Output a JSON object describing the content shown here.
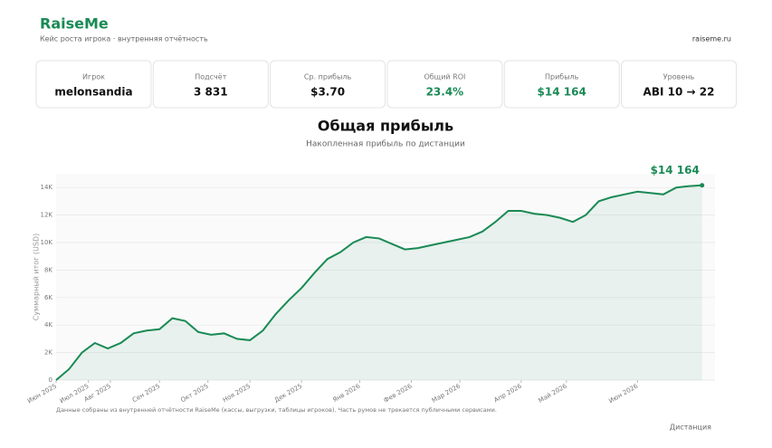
{
  "header": {
    "brand": "RaiseMe",
    "subtitle": "Кейс роста игрока · внутренняя отчётность",
    "site": "raiseme.ru"
  },
  "stats": [
    {
      "label": "Игрок",
      "value": "melonsandia",
      "color": "#111111"
    },
    {
      "label": "Подсчёт",
      "value": "3 831",
      "color": "#111111"
    },
    {
      "label": "Ср. прибыль",
      "value": "$3.70",
      "color": "#111111"
    },
    {
      "label": "Общий ROI",
      "value": "23.4%",
      "color": "#1a8a55"
    },
    {
      "label": "Прибыль",
      "value": "$14 164",
      "color": "#1a8a55"
    },
    {
      "label": "Уровень",
      "value": "ABI 10 → 22",
      "color": "#111111"
    }
  ],
  "chart_data": {
    "type": "line",
    "title": "Общая прибыль",
    "subtitle": "Накопленная прибыль по дистанции",
    "y_label": "Суммарный итог (USD)",
    "x_label": "Дистанция",
    "end_label": "$14 164",
    "footnote": "Данные собраны из внутренней отчётности RaiseMe (кассы, выгрузки, таблицы игроков). Часть румов не трекается публичными сервисами.",
    "color": "#1a8a55",
    "grid": true,
    "x": [
      0,
      2,
      4,
      6,
      8,
      10,
      12,
      14,
      16,
      18,
      20,
      22,
      24,
      26,
      28,
      30,
      32,
      34,
      36,
      38,
      40,
      42,
      44,
      46,
      48,
      50,
      52,
      54,
      56,
      58,
      60,
      62,
      64,
      66,
      68,
      70,
      72,
      74,
      76,
      78,
      80,
      82,
      84,
      86,
      88,
      90,
      92,
      94,
      96,
      98,
      100
    ],
    "series": [
      {
        "name": "Прибыль",
        "color": "#1a8a55",
        "values": [
          0,
          800,
          2000,
          2700,
          2300,
          2700,
          3400,
          3600,
          3700,
          4500,
          4300,
          3500,
          3300,
          3400,
          3000,
          2900,
          3600,
          4800,
          5800,
          6700,
          7800,
          8800,
          9300,
          10000,
          10400,
          10300,
          9900,
          9500,
          9600,
          9800,
          10000,
          10200,
          10400,
          10800,
          11500,
          12300,
          12300,
          12100,
          12000,
          11800,
          11500,
          12000,
          13000,
          13300,
          13500,
          13700,
          13600,
          13500,
          14000,
          14100,
          14164
        ]
      }
    ],
    "xlim": [
      0,
      102
    ],
    "ylim": [
      0,
      15000
    ],
    "xticks": [
      {
        "value": 0,
        "label": "Июн 2025"
      },
      {
        "value": 5,
        "label": "Июл 2025"
      },
      {
        "value": 8.4,
        "label": "Авг 2025"
      },
      {
        "value": 16,
        "label": "Сен 2025"
      },
      {
        "value": 23.5,
        "label": "Окт 2025"
      },
      {
        "value": 30,
        "label": "Ноя 2025"
      },
      {
        "value": 38,
        "label": "Дек 2025"
      },
      {
        "value": 47,
        "label": "Янв 2026"
      },
      {
        "value": 55,
        "label": "Фев 2026"
      },
      {
        "value": 62.5,
        "label": "Мар 2026"
      },
      {
        "value": 72,
        "label": "Апр 2026"
      },
      {
        "value": 79,
        "label": "Май 2026"
      },
      {
        "value": 90,
        "label": "Июн 2026"
      }
    ],
    "yticks": [
      0,
      {
        "value": 2000,
        "label": "2K"
      },
      {
        "value": 4000,
        "label": "4K"
      },
      {
        "value": 6000,
        "label": "6K"
      },
      {
        "value": 8000,
        "label": "8K"
      },
      {
        "value": 10000,
        "label": "10K"
      },
      {
        "value": 12000,
        "label": "12K"
      },
      {
        "value": 14000,
        "label": "14K"
      }
    ]
  }
}
